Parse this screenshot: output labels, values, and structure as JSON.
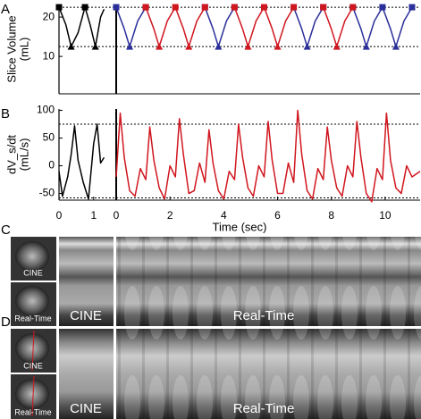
{
  "chart_data": [
    {
      "type": "line",
      "panel_label": "A",
      "ylabel": [
        "Slice Volume",
        "(mL)"
      ],
      "x": [
        0,
        0.2,
        0.35,
        0.55,
        0.75,
        0.9,
        1.05,
        1.2,
        1.3
      ],
      "series": [
        {
          "color": "#000000",
          "markers": {
            "max": "square",
            "min": "triangle"
          },
          "values": [
            22.5,
            18,
            12.5,
            16,
            22.5,
            18,
            12.5,
            20,
            22
          ]
        }
      ],
      "xlim": [
        0,
        1.65
      ],
      "ylim": [
        0.5,
        23.2
      ],
      "yticks": [
        10,
        20
      ],
      "hlines": [
        22.5,
        12.5
      ]
    },
    {
      "type": "line",
      "x": [
        0,
        0.3,
        0.5,
        0.8,
        1.1,
        1.4,
        1.6,
        1.9,
        2.2,
        2.5,
        2.7,
        3.0,
        3.3,
        3.6,
        3.8,
        4.1,
        4.4,
        4.7,
        4.9,
        5.2,
        5.5,
        5.8,
        6.0,
        6.3,
        6.6,
        6.9,
        7.1,
        7.4,
        7.7,
        8.0,
        8.2,
        8.5,
        8.8,
        9.1,
        9.3,
        9.6,
        9.9,
        10.2,
        10.4,
        10.7,
        11.0
      ],
      "series": [
        {
          "color": "#2b2f9a",
          "markers": {
            "max": "square",
            "min": "triangle"
          },
          "values": [
            22.5,
            17,
            12.5,
            19,
            22.5,
            null,
            null,
            null,
            null,
            null,
            null,
            null,
            22.5,
            17,
            12.5,
            19,
            22.5,
            null,
            null,
            null,
            null,
            null,
            null,
            null,
            22.5,
            17,
            12.5,
            19,
            22.5,
            null,
            null,
            null,
            22.5,
            17,
            12.5,
            19,
            22.5,
            17,
            12.5,
            19,
            22.5
          ]
        },
        {
          "color": "#d0161e",
          "markers": {
            "max": "square",
            "min": "triangle"
          },
          "values": [
            null,
            null,
            null,
            null,
            22.5,
            17,
            12.5,
            19,
            22.5,
            17,
            12.5,
            19,
            22.5,
            null,
            null,
            null,
            22.5,
            17,
            12.5,
            19,
            22.5,
            17,
            12.5,
            19,
            22.5,
            null,
            null,
            null,
            22.5,
            17,
            12.5,
            19,
            22.5,
            null,
            null,
            null,
            null,
            null,
            null,
            null,
            null
          ]
        }
      ],
      "xlim": [
        0,
        11.3
      ],
      "ylim": [
        0.5,
        23.2
      ],
      "hlines": [
        22.5,
        12.5
      ]
    },
    {
      "type": "line",
      "panel_label": "B",
      "ylabel": [
        "dV_s/dt",
        "(mL/s)"
      ],
      "x": [
        0,
        0.1,
        0.25,
        0.35,
        0.45,
        0.55,
        0.7,
        0.85,
        1.0,
        1.1,
        1.2,
        1.3
      ],
      "series": [
        {
          "color": "#000000",
          "values": [
            -10,
            -55,
            -20,
            20,
            72,
            10,
            -30,
            -60,
            40,
            75,
            5,
            15
          ]
        }
      ],
      "xlim": [
        0,
        1.65
      ],
      "ylim": [
        -62,
        102.5
      ],
      "yticks": [
        -50,
        0,
        50,
        100
      ],
      "xticks": [
        0,
        1
      ],
      "hlines": [
        75,
        -58
      ]
    },
    {
      "type": "line",
      "xlabel": "Time (sec)",
      "x": [
        0,
        0.15,
        0.3,
        0.5,
        0.7,
        0.9,
        1.1,
        1.25,
        1.4,
        1.6,
        1.8,
        2.0,
        2.2,
        2.35,
        2.5,
        2.7,
        2.9,
        3.1,
        3.3,
        3.45,
        3.6,
        3.8,
        4.0,
        4.2,
        4.4,
        4.55,
        4.7,
        4.9,
        5.1,
        5.3,
        5.5,
        5.65,
        5.8,
        6.0,
        6.2,
        6.4,
        6.6,
        6.75,
        6.9,
        7.1,
        7.3,
        7.5,
        7.7,
        7.85,
        8.0,
        8.2,
        8.4,
        8.6,
        8.8,
        8.95,
        9.1,
        9.3,
        9.5,
        9.7,
        9.9,
        10.05,
        10.2,
        10.4,
        10.6,
        10.8,
        11.0,
        11.3
      ],
      "series": [
        {
          "color": "#d0161e",
          "values": [
            -20,
            95,
            15,
            -45,
            -55,
            -5,
            -25,
            70,
            10,
            -40,
            -60,
            0,
            -20,
            85,
            20,
            -50,
            -45,
            5,
            -30,
            65,
            5,
            -45,
            -60,
            -10,
            -25,
            75,
            15,
            -40,
            -55,
            0,
            -20,
            80,
            10,
            -50,
            -50,
            5,
            -30,
            100,
            20,
            -45,
            -60,
            -5,
            -25,
            70,
            10,
            -40,
            -55,
            0,
            -20,
            80,
            15,
            -50,
            -65,
            -5,
            -25,
            95,
            10,
            -40,
            -50,
            0,
            -20,
            -10
          ]
        }
      ],
      "xlim": [
        0,
        11.3
      ],
      "ylim": [
        -62,
        102.5
      ],
      "xticks": [
        0,
        2,
        4,
        6,
        8,
        10
      ],
      "hlines": [
        75,
        -58
      ]
    }
  ],
  "panels": [
    {
      "label": "C",
      "thumb_labels": [
        "CINE",
        "Real-Time"
      ],
      "strip_labels": [
        "CINE",
        "Real-Time"
      ]
    },
    {
      "label": "D",
      "thumb_labels": [
        "CINE",
        "Real-Time"
      ],
      "strip_labels": [
        "CINE",
        "Real-Time"
      ]
    }
  ]
}
